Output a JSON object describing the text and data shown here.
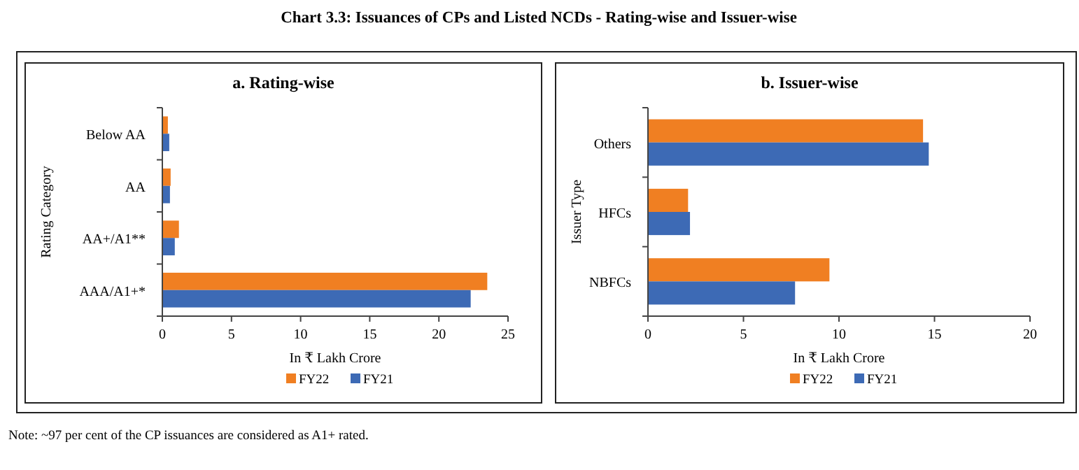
{
  "chart_data": [
    {
      "type": "bar",
      "orientation": "horizontal",
      "title": "a. Rating-wise",
      "xlabel": "In ₹ Lakh Crore",
      "ylabel": "Rating Category",
      "categories": [
        "Below AA",
        "AA",
        "AA+/A1**",
        "AAA/A1+*"
      ],
      "series": [
        {
          "name": "FY22",
          "color": "#f07f22",
          "values": [
            0.4,
            0.6,
            1.2,
            23.5
          ]
        },
        {
          "name": "FY21",
          "color": "#3d6ab5",
          "values": [
            0.5,
            0.55,
            0.9,
            22.3
          ]
        }
      ],
      "xlim": [
        0,
        25
      ],
      "xticks": [
        0,
        5,
        10,
        15,
        20,
        25
      ],
      "legend": "bottom",
      "grid": false,
      "annotations": [
        "Chart 3.3: Issuances of CPs and Listed NCDs - Rating-wise and Issuer-wise",
        "Note: ~97 per cent of the CP issuances are considered as A1+ rated."
      ]
    },
    {
      "type": "bar",
      "orientation": "horizontal",
      "title": "b. Issuer-wise",
      "xlabel": "In ₹ Lakh Crore",
      "ylabel": "Issuer Type",
      "categories": [
        "Others",
        "HFCs",
        "NBFCs"
      ],
      "series": [
        {
          "name": "FY22",
          "color": "#f07f22",
          "values": [
            14.4,
            2.1,
            9.5
          ]
        },
        {
          "name": "FY21",
          "color": "#3d6ab5",
          "values": [
            14.7,
            2.2,
            7.7
          ]
        }
      ],
      "xlim": [
        0,
        20
      ],
      "xticks": [
        0,
        5,
        10,
        15,
        20
      ],
      "legend": "bottom",
      "grid": false
    }
  ]
}
